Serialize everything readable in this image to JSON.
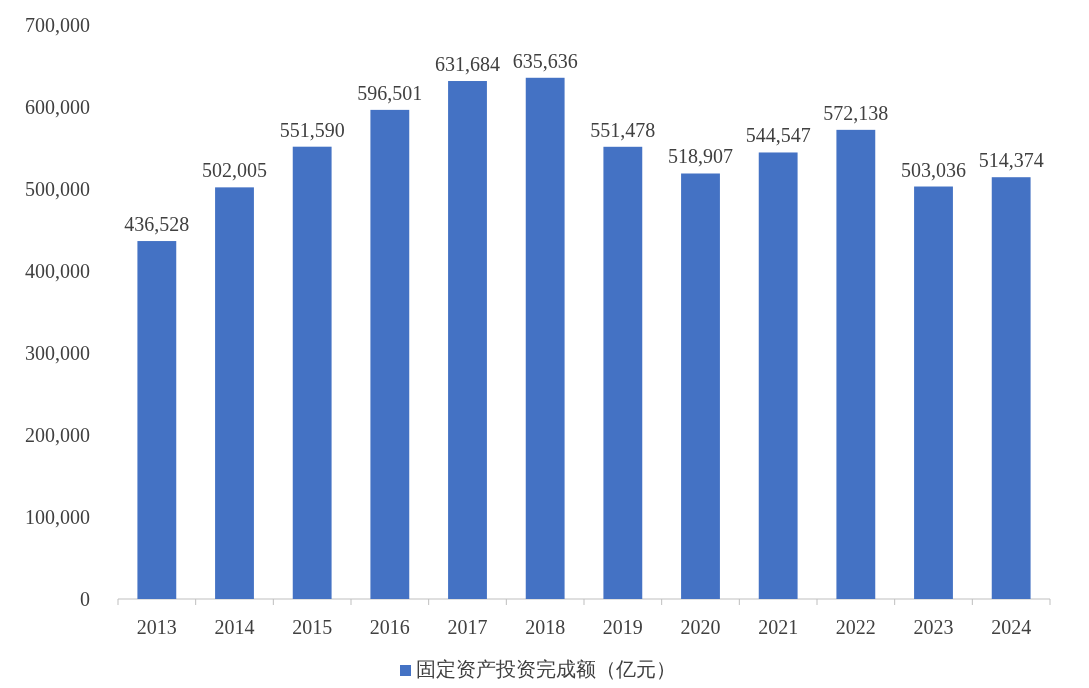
{
  "chart_data": {
    "type": "bar",
    "categories": [
      "2013",
      "2014",
      "2015",
      "2016",
      "2017",
      "2018",
      "2019",
      "2020",
      "2021",
      "2022",
      "2023",
      "2024"
    ],
    "series": [
      {
        "name": "固定资产投资完成额（亿元）",
        "color": "#4472c4",
        "values": [
          436528,
          502005,
          551590,
          596501,
          631684,
          635636,
          551478,
          518907,
          544547,
          572138,
          503036,
          514374
        ],
        "value_labels": [
          "436,528",
          "502,005",
          "551,590",
          "596,501",
          "631,684",
          "635,636",
          "551,478",
          "518,907",
          "544,547",
          "572,138",
          "503,036",
          "514,374"
        ]
      }
    ],
    "ylim": [
      0,
      700000
    ],
    "yticks": [
      0,
      {
        "value": 100000,
        "label": "100,000"
      },
      {
        "value": 200000,
        "label": "200,000"
      },
      {
        "value": 300000,
        "label": "300,000"
      },
      {
        "value": 400000,
        "label": "400,000"
      },
      {
        "value": 500000,
        "label": "500,000"
      },
      {
        "value": 600000,
        "label": "600,000"
      },
      {
        "value": 700000,
        "label": "700,000"
      }
    ],
    "legend": "bottom"
  }
}
